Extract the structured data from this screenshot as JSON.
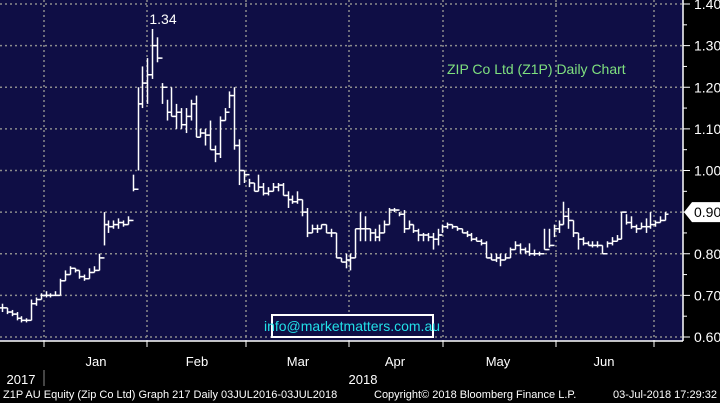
{
  "chart_data": {
    "type": "ohlc-bar",
    "title": "ZIP Co Ltd (Z1P) Daily Chart",
    "annotation": "1.34",
    "watermark": "info@marketmatters.com.au",
    "ylim": [
      0.6,
      1.4
    ],
    "y_ticks": [
      "1.40",
      "1.30",
      "1.20",
      "1.10",
      "1.00",
      "0.90",
      "0.80",
      "0.70",
      "0.60"
    ],
    "last_price_label": "0.90",
    "x_month_labels": [
      "Jan",
      "Feb",
      "Mar",
      "Apr",
      "May",
      "Jun"
    ],
    "x_year_labels": [
      "2017",
      "2018"
    ],
    "grid": true,
    "colors": {
      "background": "#0f0e45",
      "bars": "#ffffff",
      "title": "#7fe07f",
      "watermark": "#22e0e8",
      "grid": "#8c8c8c"
    },
    "bar_fields": [
      "high",
      "low",
      "close"
    ],
    "bars": [
      [
        0.68,
        0.66,
        0.67
      ],
      [
        0.67,
        0.655,
        0.66
      ],
      [
        0.665,
        0.65,
        0.655
      ],
      [
        0.66,
        0.64,
        0.645
      ],
      [
        0.65,
        0.635,
        0.64
      ],
      [
        0.645,
        0.635,
        0.64
      ],
      [
        0.69,
        0.64,
        0.68
      ],
      [
        0.695,
        0.675,
        0.69
      ],
      [
        0.705,
        0.69,
        0.7
      ],
      [
        0.71,
        0.695,
        0.7
      ],
      [
        0.705,
        0.695,
        0.7
      ],
      [
        0.71,
        0.7,
        0.7
      ],
      [
        0.74,
        0.7,
        0.735
      ],
      [
        0.76,
        0.735,
        0.75
      ],
      [
        0.77,
        0.75,
        0.765
      ],
      [
        0.765,
        0.755,
        0.76
      ],
      [
        0.76,
        0.74,
        0.745
      ],
      [
        0.75,
        0.735,
        0.74
      ],
      [
        0.765,
        0.74,
        0.755
      ],
      [
        0.77,
        0.755,
        0.76
      ],
      [
        0.8,
        0.76,
        0.79
      ],
      [
        0.9,
        0.82,
        0.87
      ],
      [
        0.88,
        0.85,
        0.865
      ],
      [
        0.88,
        0.86,
        0.87
      ],
      [
        0.885,
        0.86,
        0.875
      ],
      [
        0.88,
        0.865,
        0.87
      ],
      [
        0.89,
        0.87,
        0.88
      ],
      [
        0.99,
        0.95,
        0.955
      ],
      [
        1.2,
        1.0,
        1.16
      ],
      [
        1.25,
        1.15,
        1.21
      ],
      [
        1.27,
        1.16,
        1.23
      ],
      [
        1.34,
        1.22,
        1.3
      ],
      [
        1.32,
        1.26,
        1.27
      ],
      [
        1.21,
        1.16,
        1.2
      ],
      [
        1.17,
        1.12,
        1.14
      ],
      [
        1.2,
        1.13,
        1.13
      ],
      [
        1.16,
        1.1,
        1.14
      ],
      [
        1.15,
        1.1,
        1.11
      ],
      [
        1.15,
        1.09,
        1.13
      ],
      [
        1.17,
        1.12,
        1.16
      ],
      [
        1.18,
        1.08,
        1.08
      ],
      [
        1.1,
        1.08,
        1.09
      ],
      [
        1.1,
        1.06,
        1.085
      ],
      [
        1.12,
        1.05,
        1.05
      ],
      [
        1.06,
        1.02,
        1.04
      ],
      [
        1.13,
        1.03,
        1.12
      ],
      [
        1.15,
        1.12,
        1.14
      ],
      [
        1.19,
        1.15,
        1.18
      ],
      [
        1.2,
        1.05,
        1.06
      ],
      [
        1.075,
        0.965,
        1.0
      ],
      [
        1.0,
        0.97,
        0.99
      ],
      [
        0.98,
        0.96,
        0.97
      ],
      [
        0.97,
        0.95,
        0.95
      ],
      [
        0.99,
        0.95,
        0.96
      ],
      [
        0.97,
        0.94,
        0.945
      ],
      [
        0.96,
        0.94,
        0.95
      ],
      [
        0.97,
        0.95,
        0.96
      ],
      [
        0.97,
        0.95,
        0.965
      ],
      [
        0.97,
        0.94,
        0.94
      ],
      [
        0.95,
        0.91,
        0.93
      ],
      [
        0.94,
        0.92,
        0.925
      ],
      [
        0.95,
        0.92,
        0.93
      ],
      [
        0.93,
        0.89,
        0.9
      ],
      [
        0.91,
        0.84,
        0.85
      ],
      [
        0.87,
        0.85,
        0.86
      ],
      [
        0.87,
        0.85,
        0.86
      ],
      [
        0.87,
        0.86,
        0.87
      ],
      [
        0.87,
        0.85,
        0.85
      ],
      [
        0.86,
        0.84,
        0.85
      ],
      [
        0.85,
        0.79,
        0.79
      ],
      [
        0.79,
        0.78,
        0.78
      ],
      [
        0.8,
        0.765,
        0.785
      ],
      [
        0.8,
        0.76,
        0.79
      ],
      [
        0.86,
        0.79,
        0.86
      ],
      [
        0.9,
        0.83,
        0.86
      ],
      [
        0.89,
        0.83,
        0.86
      ],
      [
        0.86,
        0.83,
        0.85
      ],
      [
        0.86,
        0.83,
        0.84
      ],
      [
        0.87,
        0.83,
        0.85
      ],
      [
        0.88,
        0.85,
        0.87
      ],
      [
        0.91,
        0.87,
        0.905
      ],
      [
        0.91,
        0.9,
        0.905
      ],
      [
        0.9,
        0.89,
        0.895
      ],
      [
        0.905,
        0.85,
        0.86
      ],
      [
        0.88,
        0.86,
        0.87
      ],
      [
        0.87,
        0.85,
        0.855
      ],
      [
        0.86,
        0.83,
        0.845
      ],
      [
        0.85,
        0.83,
        0.845
      ],
      [
        0.85,
        0.83,
        0.84
      ],
      [
        0.85,
        0.81,
        0.835
      ],
      [
        0.86,
        0.82,
        0.845
      ],
      [
        0.87,
        0.85,
        0.865
      ],
      [
        0.875,
        0.86,
        0.87
      ],
      [
        0.87,
        0.86,
        0.865
      ],
      [
        0.865,
        0.855,
        0.86
      ],
      [
        0.86,
        0.85,
        0.85
      ],
      [
        0.855,
        0.84,
        0.845
      ],
      [
        0.85,
        0.83,
        0.835
      ],
      [
        0.84,
        0.83,
        0.83
      ],
      [
        0.835,
        0.82,
        0.825
      ],
      [
        0.83,
        0.79,
        0.79
      ],
      [
        0.8,
        0.785,
        0.785
      ],
      [
        0.8,
        0.78,
        0.79
      ],
      [
        0.8,
        0.77,
        0.785
      ],
      [
        0.8,
        0.785,
        0.79
      ],
      [
        0.815,
        0.79,
        0.81
      ],
      [
        0.83,
        0.81,
        0.82
      ],
      [
        0.825,
        0.8,
        0.81
      ],
      [
        0.815,
        0.8,
        0.805
      ],
      [
        0.825,
        0.795,
        0.8
      ],
      [
        0.81,
        0.795,
        0.8
      ],
      [
        0.805,
        0.795,
        0.8
      ],
      [
        0.86,
        0.81,
        0.81
      ],
      [
        0.86,
        0.815,
        0.82
      ],
      [
        0.87,
        0.84,
        0.86
      ],
      [
        0.88,
        0.85,
        0.87
      ],
      [
        0.925,
        0.87,
        0.89
      ],
      [
        0.91,
        0.86,
        0.88
      ],
      [
        0.88,
        0.84,
        0.85
      ],
      [
        0.85,
        0.81,
        0.835
      ],
      [
        0.84,
        0.82,
        0.825
      ],
      [
        0.83,
        0.82,
        0.82
      ],
      [
        0.83,
        0.815,
        0.82
      ],
      [
        0.83,
        0.815,
        0.82
      ],
      [
        0.82,
        0.8,
        0.8
      ],
      [
        0.83,
        0.815,
        0.825
      ],
      [
        0.84,
        0.82,
        0.83
      ],
      [
        0.845,
        0.83,
        0.835
      ],
      [
        0.9,
        0.835,
        0.9
      ],
      [
        0.895,
        0.87,
        0.875
      ],
      [
        0.89,
        0.86,
        0.865
      ],
      [
        0.87,
        0.85,
        0.86
      ],
      [
        0.875,
        0.86,
        0.865
      ],
      [
        0.885,
        0.85,
        0.865
      ],
      [
        0.9,
        0.86,
        0.87
      ],
      [
        0.88,
        0.865,
        0.875
      ],
      [
        0.89,
        0.875,
        0.88
      ],
      [
        0.9,
        0.88,
        0.895
      ]
    ]
  },
  "footer": {
    "security": "Z1P AU Equity (Zip Co Ltd) Graph 217  Daily 03JUL2016-03JUL2018",
    "copyright": "Copyright© 2018 Bloomberg Finance L.P.",
    "timestamp": "03-Jul-2018 17:29:32"
  }
}
